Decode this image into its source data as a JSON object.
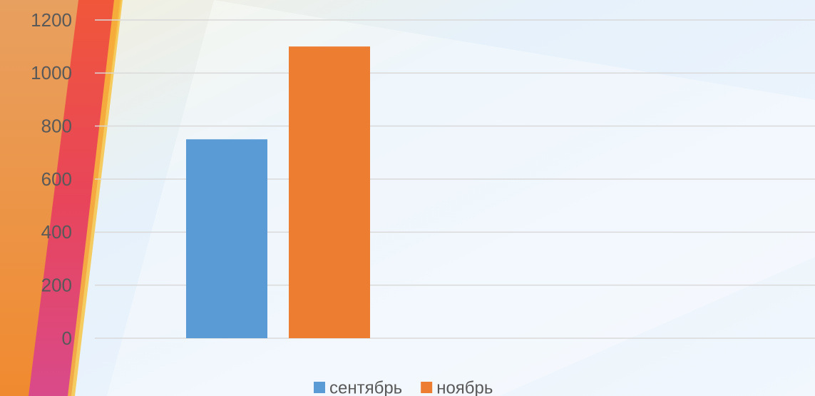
{
  "chart_data": {
    "type": "bar",
    "categories": [
      null
    ],
    "series": [
      {
        "name": "сентябрь",
        "color": "#5b9bd5",
        "values": [
          750
        ]
      },
      {
        "name": "ноябрь",
        "color": "#ed7d31",
        "values": [
          1100
        ]
      }
    ],
    "ylim": [
      0,
      1200
    ],
    "yticks": [
      0,
      200,
      400,
      600,
      800,
      1000,
      1200
    ],
    "grid": true,
    "legend": "bottom"
  }
}
